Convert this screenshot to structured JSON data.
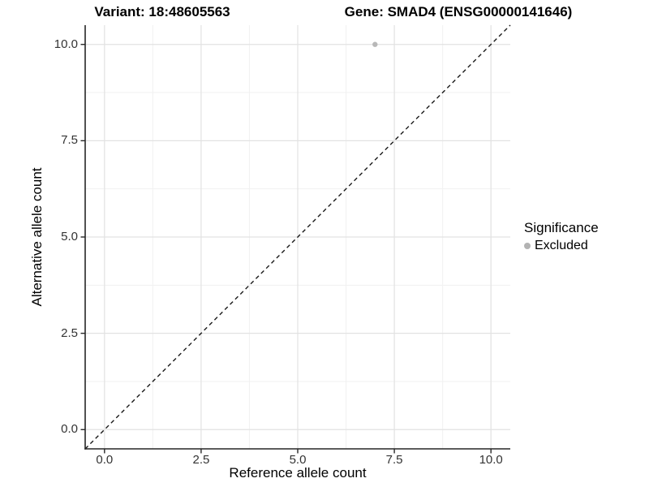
{
  "chart_data": {
    "type": "scatter",
    "title_left": "Variant: 18:48605563",
    "title_right": "Gene: SMAD4 (ENSG00000141646)",
    "xlabel": "Reference allele count",
    "ylabel": "Alternative allele count",
    "xlim": [
      -0.5,
      10.5
    ],
    "ylim": [
      -0.5,
      10.5
    ],
    "xticks": [
      0.0,
      2.5,
      5.0,
      7.5,
      10.0
    ],
    "yticks": [
      0.0,
      2.5,
      5.0,
      7.5,
      10.0
    ],
    "xtick_labels": [
      "0.0",
      "2.5",
      "5.0",
      "7.5",
      "10.0"
    ],
    "ytick_labels": [
      "0.0",
      "2.5",
      "5.0",
      "7.5",
      "10.0"
    ],
    "minor_xticks": [
      1.25,
      3.75,
      6.25,
      8.75
    ],
    "minor_yticks": [
      1.25,
      3.75,
      6.25,
      8.75
    ],
    "grid": true,
    "points": [
      {
        "x": 7,
        "y": 10,
        "series": "Excluded"
      }
    ],
    "reference_line": {
      "kind": "identity",
      "style": "dashed",
      "from": -0.5,
      "to": 10.5
    },
    "legend": {
      "title": "Significance",
      "position": "right",
      "items": [
        {
          "label": "Excluded",
          "color": "#b3b3b3"
        }
      ]
    },
    "colors": {
      "point": "#b8b8b8",
      "grid_major": "#e2e2e2",
      "grid_minor": "#f1f1f1",
      "axis_line": "#262626",
      "tick_text": "#333333",
      "reference_line": "#1a1a1a",
      "background": "#ffffff"
    }
  }
}
